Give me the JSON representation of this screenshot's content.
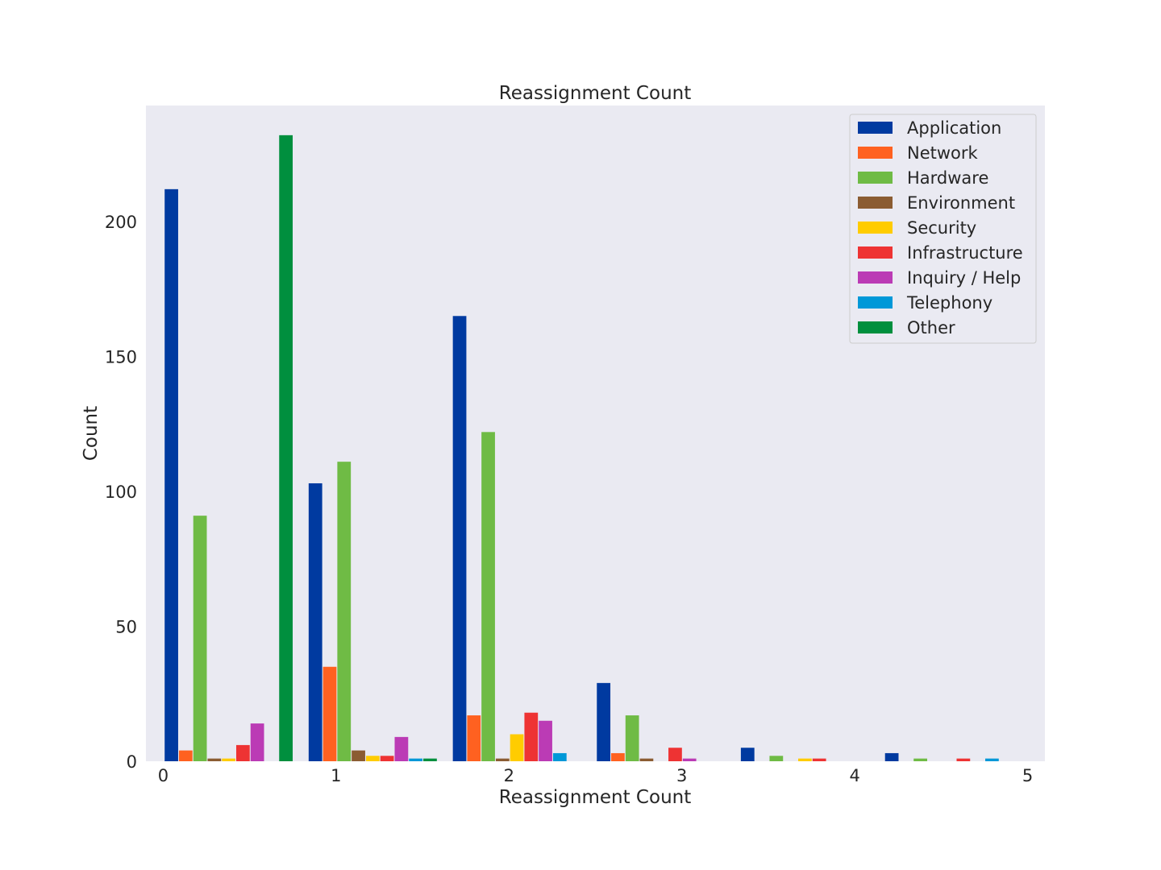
{
  "chart_data": {
    "type": "bar",
    "title": "Reassignment Count",
    "xlabel": "Reassignment Count",
    "ylabel": "Count",
    "xlim": [
      -0.1,
      5.1
    ],
    "ylim": [
      0,
      243
    ],
    "xticks": [
      "0",
      "1",
      "2",
      "3",
      "4",
      "5"
    ],
    "yticks": [
      "0",
      "50",
      "100",
      "150",
      "200"
    ],
    "grid": false,
    "legend_position": "top-right",
    "groups": [
      {
        "x_start": 0.0,
        "x_end": 0.833
      },
      {
        "x_start": 0.833,
        "x_end": 1.667
      },
      {
        "x_start": 1.667,
        "x_end": 2.5
      },
      {
        "x_start": 2.5,
        "x_end": 3.333
      },
      {
        "x_start": 3.333,
        "x_end": 4.167
      },
      {
        "x_start": 4.167,
        "x_end": 5.0
      }
    ],
    "series": [
      {
        "name": "Application",
        "color": "#003aa0",
        "values": [
          212,
          103,
          165,
          29,
          5,
          3
        ]
      },
      {
        "name": "Network",
        "color": "#ff6120",
        "values": [
          4,
          35,
          17,
          3,
          0,
          0
        ]
      },
      {
        "name": "Hardware",
        "color": "#6fbb45",
        "values": [
          91,
          111,
          122,
          17,
          2,
          1
        ]
      },
      {
        "name": "Environment",
        "color": "#8b5c32",
        "values": [
          1,
          4,
          1,
          1,
          0,
          0
        ]
      },
      {
        "name": "Security",
        "color": "#ffcc00",
        "values": [
          1,
          2,
          10,
          0,
          1,
          0
        ]
      },
      {
        "name": "Infrastructure",
        "color": "#ee3333",
        "values": [
          6,
          2,
          18,
          5,
          1,
          1
        ]
      },
      {
        "name": "Inquiry / Help",
        "color": "#bb3bb5",
        "values": [
          14,
          9,
          15,
          1,
          0,
          0
        ]
      },
      {
        "name": "Telephony",
        "color": "#0098d8",
        "values": [
          0,
          1,
          3,
          0,
          0,
          1
        ]
      },
      {
        "name": "Other",
        "color": "#008f3e",
        "values": [
          232,
          1,
          0,
          0,
          0,
          0
        ]
      }
    ]
  },
  "plot_background": "#eaeaf2"
}
